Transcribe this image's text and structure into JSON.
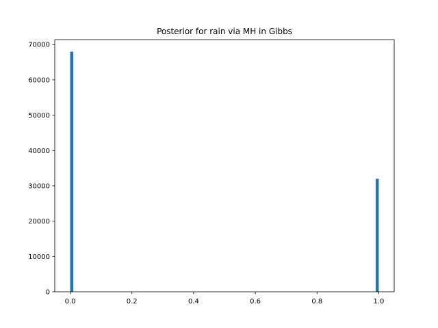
{
  "chart_data": {
    "type": "bar",
    "title": "Posterior for rain via MH in Gibbs",
    "xlabel": "",
    "ylabel": "",
    "xlim": [
      -0.05,
      1.05
    ],
    "ylim": [
      0,
      71400
    ],
    "bin_width": 0.01,
    "bars": [
      {
        "x": 0.0,
        "value": 68000
      },
      {
        "x": 0.99,
        "value": 32000
      }
    ],
    "x_ticks": [
      {
        "value": 0.0,
        "label": "0.0"
      },
      {
        "value": 0.2,
        "label": "0.2"
      },
      {
        "value": 0.4,
        "label": "0.4"
      },
      {
        "value": 0.6,
        "label": "0.6"
      },
      {
        "value": 0.8,
        "label": "0.8"
      },
      {
        "value": 1.0,
        "label": "1.0"
      }
    ],
    "y_ticks": [
      {
        "value": 0,
        "label": "0"
      },
      {
        "value": 10000,
        "label": "10000"
      },
      {
        "value": 20000,
        "label": "20000"
      },
      {
        "value": 30000,
        "label": "30000"
      },
      {
        "value": 40000,
        "label": "40000"
      },
      {
        "value": 50000,
        "label": "50000"
      },
      {
        "value": 60000,
        "label": "60000"
      },
      {
        "value": 70000,
        "label": "70000"
      }
    ],
    "grid": false,
    "colors": {
      "bar": "#1f77b4",
      "axis": "#000000",
      "background": "#ffffff"
    }
  }
}
